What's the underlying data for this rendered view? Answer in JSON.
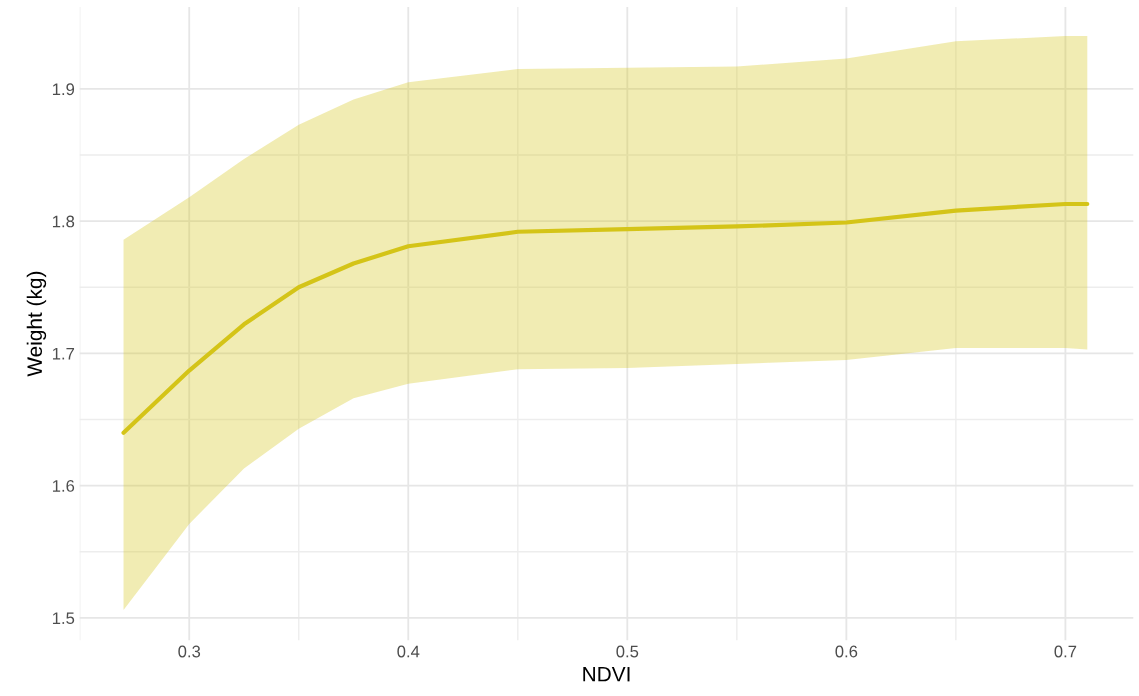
{
  "chart_data": {
    "type": "line",
    "xlabel": "NDVI",
    "ylabel": "Weight (kg)",
    "xlim": [
      0.25,
      0.731
    ],
    "ylim": [
      1.483,
      1.962
    ],
    "xticks": [
      {
        "value": 0.25,
        "label": null
      },
      0.3,
      {
        "value": 0.35,
        "label": null
      },
      0.4,
      {
        "value": 0.45,
        "label": null
      },
      0.5,
      {
        "value": 0.55,
        "label": null
      },
      0.6,
      {
        "value": 0.65,
        "label": null
      },
      0.7
    ],
    "yticks": [
      1.5,
      {
        "value": 1.55,
        "label": null
      },
      1.6,
      {
        "value": 1.65,
        "label": null
      },
      1.7,
      {
        "value": 1.75,
        "label": null
      },
      1.8,
      {
        "value": 1.85,
        "label": null
      },
      1.9
    ],
    "grid": true,
    "marker": "none",
    "line_style": "solid",
    "series": [
      {
        "color": "#d4c418",
        "x": [
          0.27,
          0.3,
          0.325,
          0.35,
          0.375,
          0.4,
          0.45,
          0.5,
          0.55,
          0.6,
          0.65,
          0.7,
          0.71
        ],
        "values": [
          1.64,
          1.687,
          1.722,
          1.75,
          1.768,
          1.781,
          1.792,
          1.794,
          1.796,
          1.799,
          1.808,
          1.813,
          1.813
        ],
        "lower": [
          1.506,
          1.571,
          1.613,
          1.643,
          1.666,
          1.677,
          1.688,
          1.689,
          1.692,
          1.695,
          1.704,
          1.704,
          1.703
        ],
        "upper": [
          1.786,
          1.818,
          1.847,
          1.873,
          1.892,
          1.905,
          1.915,
          1.916,
          1.917,
          1.923,
          1.936,
          1.94,
          1.94
        ]
      }
    ]
  }
}
